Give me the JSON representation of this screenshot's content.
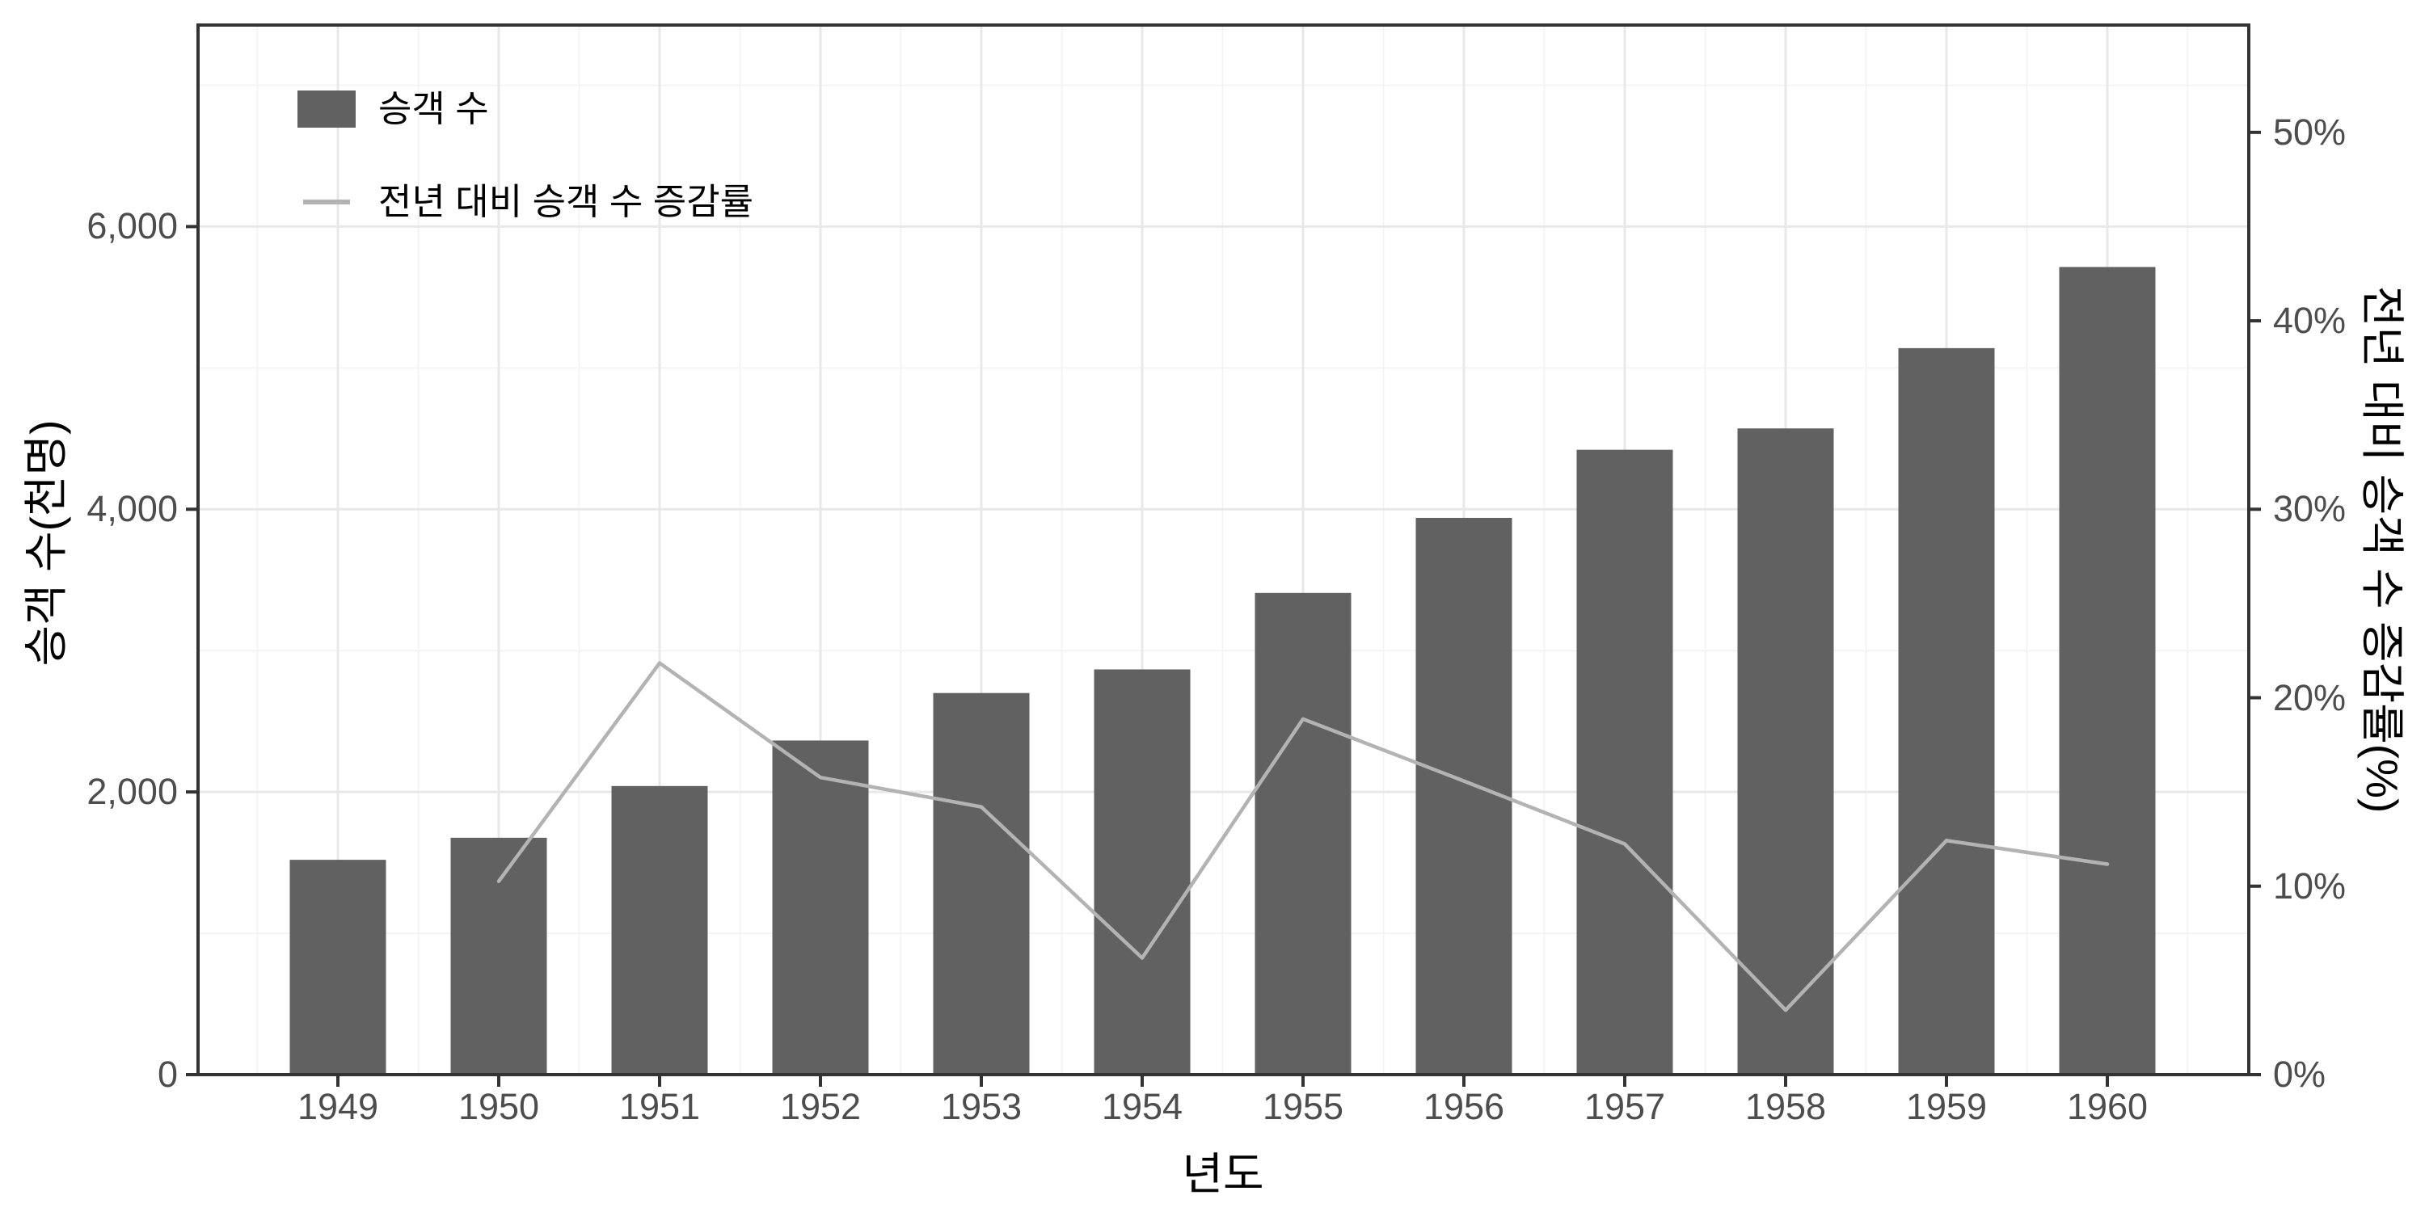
{
  "chart_data": {
    "type": "bar+line-dual-axis",
    "title": "",
    "categories": [
      "1949",
      "1950",
      "1951",
      "1952",
      "1953",
      "1954",
      "1955",
      "1956",
      "1957",
      "1958",
      "1959",
      "1960"
    ],
    "series": [
      {
        "name": "승객 수",
        "kind": "bar",
        "axis": "left",
        "color": "#616161",
        "values": [
          1520,
          1676,
          2042,
          2364,
          2700,
          2867,
          3408,
          3939,
          4421,
          4572,
          5140,
          5714
        ]
      },
      {
        "name": "전년 대비 승객 수 증감률",
        "kind": "line",
        "axis": "right",
        "color": "#b3b3b3",
        "values": [
          null,
          10.26,
          21.84,
          15.77,
          14.21,
          6.19,
          18.87,
          15.58,
          12.24,
          3.42,
          12.42,
          11.17
        ]
      }
    ],
    "x_axis": {
      "title": "년도",
      "tick_labels": [
        "1949",
        "1950",
        "1951",
        "1952",
        "1953",
        "1954",
        "1955",
        "1956",
        "1957",
        "1958",
        "1959",
        "1960"
      ]
    },
    "left_axis": {
      "title": "승객 수(천명)",
      "tick_values": [
        0,
        2000,
        4000,
        6000
      ],
      "tick_labels": [
        "0",
        "2,000",
        "4,000",
        "6,000"
      ],
      "minor_values": [
        1000,
        3000,
        5000,
        7000
      ],
      "range": [
        0,
        7430
      ]
    },
    "right_axis": {
      "title": "전년 대비 승객 수 증감률(%)",
      "tick_values": [
        0,
        10,
        20,
        30,
        40,
        50
      ],
      "tick_labels": [
        "0%",
        "10%",
        "20%",
        "30%",
        "40%",
        "50%"
      ],
      "range": [
        0,
        55.7
      ]
    },
    "legend": {
      "position": "top-left-inside",
      "entries": [
        {
          "label": "승객 수",
          "swatch": "rect"
        },
        {
          "label": "전년 대비 승객 수 증감률",
          "swatch": "line"
        }
      ]
    },
    "grid": {
      "major": true,
      "minor": true
    },
    "colors": {
      "background": "#ffffff",
      "panel_background": "#ffffff",
      "grid_major": "#e8e8e8",
      "grid_minor": "#f4f4f4",
      "panel_border": "#333333",
      "tick_mark": "#333333",
      "tick_text": "#4d4d4d",
      "title_text": "#000000"
    }
  }
}
